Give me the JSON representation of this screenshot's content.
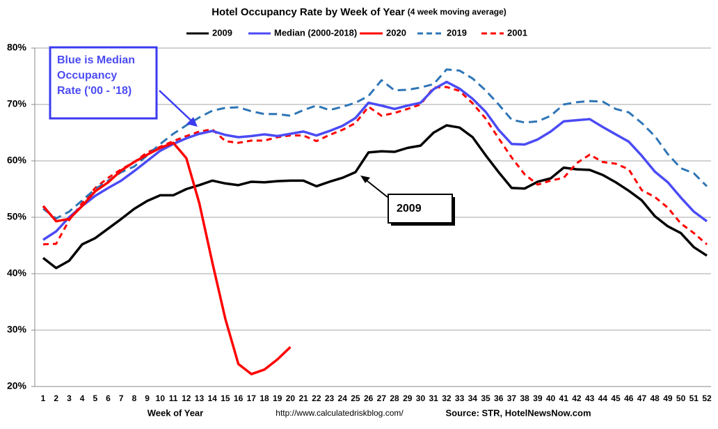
{
  "chart_data": {
    "type": "line",
    "title": "Hotel Occupancy Rate by  Week of Year",
    "subtitle": "(4 week moving average)",
    "xlabel": "Week of Year",
    "url": "http://www.calculatedriskblog.com/",
    "source": "Source: STR, HotelNewsNow.com",
    "x": [
      1,
      2,
      3,
      4,
      5,
      6,
      7,
      8,
      9,
      10,
      11,
      12,
      13,
      14,
      15,
      16,
      17,
      18,
      19,
      20,
      21,
      22,
      23,
      24,
      25,
      26,
      27,
      28,
      29,
      30,
      31,
      32,
      33,
      34,
      35,
      36,
      37,
      38,
      39,
      40,
      41,
      42,
      43,
      44,
      45,
      46,
      47,
      48,
      49,
      50,
      51,
      52
    ],
    "ylim": [
      20,
      80
    ],
    "yticks": [
      {
        "value": 20,
        "label": "20%"
      },
      {
        "value": 30,
        "label": "30%"
      },
      {
        "value": 40,
        "label": "40%"
      },
      {
        "value": 50,
        "label": "50%"
      },
      {
        "value": 60,
        "label": "60%"
      },
      {
        "value": 70,
        "label": "70%"
      },
      {
        "value": 80,
        "label": "80%"
      }
    ],
    "grid": true,
    "series": [
      {
        "name": "2009",
        "color": "#000000",
        "dashed": false,
        "values": [
          42.8,
          41.0,
          42.3,
          45.2,
          46.3,
          48.0,
          49.7,
          51.5,
          52.9,
          53.9,
          53.9,
          55.0,
          55.7,
          56.5,
          56.0,
          55.7,
          56.3,
          56.2,
          56.4,
          56.5,
          56.5,
          55.5,
          56.3,
          57.0,
          58.0,
          61.5,
          61.7,
          61.6,
          62.3,
          62.7,
          65.0,
          66.3,
          65.9,
          64.2,
          61.0,
          58.0,
          55.2,
          55.1,
          56.3,
          56.9,
          58.8,
          58.5,
          58.4,
          57.5,
          56.2,
          54.7,
          53.0,
          50.2,
          48.4,
          47.2,
          44.7,
          43.2
        ]
      },
      {
        "name": "Median (2000-2018)",
        "color": "#4b4bf5",
        "dashed": false,
        "values": [
          46.0,
          47.5,
          50.0,
          52.0,
          53.8,
          55.2,
          56.5,
          58.2,
          60.0,
          61.8,
          63.0,
          64.0,
          64.8,
          65.3,
          64.6,
          64.2,
          64.4,
          64.7,
          64.4,
          64.8,
          65.2,
          64.5,
          65.3,
          66.2,
          67.6,
          70.3,
          69.8,
          69.2,
          69.8,
          70.3,
          72.7,
          74.0,
          72.8,
          71.0,
          68.7,
          65.5,
          63.0,
          62.9,
          63.8,
          65.2,
          67.0,
          67.2,
          67.4,
          66.0,
          64.7,
          63.4,
          60.9,
          58.1,
          56.2,
          53.5,
          51.0,
          49.3
        ]
      },
      {
        "name": "2020",
        "color": "#ff0000",
        "dashed": false,
        "values": [
          52.0,
          49.3,
          49.7,
          52.0,
          54.6,
          56.2,
          58.3,
          59.8,
          61.1,
          62.3,
          63.2,
          60.5,
          52.5,
          42.0,
          32.0,
          24.0,
          22.2,
          23.0,
          24.8,
          27.0,
          null,
          null,
          null,
          null,
          null,
          null,
          null,
          null,
          null,
          null,
          null,
          null,
          null,
          null,
          null,
          null,
          null,
          null,
          null,
          null,
          null,
          null,
          null,
          null,
          null,
          null,
          null,
          null,
          null,
          null,
          null,
          null
        ]
      },
      {
        "name": "2019",
        "color": "#2e75b6",
        "dashed": true,
        "values": [
          51.5,
          49.8,
          51.0,
          53.0,
          55.0,
          56.5,
          58.0,
          59.0,
          61.0,
          63.0,
          64.8,
          66.3,
          67.7,
          68.9,
          69.4,
          69.5,
          68.8,
          68.3,
          68.3,
          68.0,
          69.0,
          69.8,
          69.0,
          69.6,
          70.3,
          71.5,
          74.3,
          72.5,
          72.6,
          73.0,
          73.6,
          76.2,
          76.0,
          74.6,
          72.5,
          70.0,
          67.3,
          66.8,
          67.0,
          68.0,
          70.0,
          70.4,
          70.6,
          70.5,
          69.2,
          68.6,
          66.7,
          64.4,
          61.2,
          58.7,
          57.8,
          55.5
        ]
      },
      {
        "name": "2001",
        "color": "#ff0000",
        "dashed": true,
        "values": [
          45.2,
          45.3,
          49.5,
          52.5,
          55.2,
          57.0,
          58.5,
          59.8,
          61.5,
          62.5,
          63.5,
          64.4,
          65.2,
          65.6,
          63.5,
          63.2,
          63.6,
          63.6,
          64.2,
          64.5,
          64.5,
          63.5,
          64.6,
          65.5,
          66.7,
          69.6,
          68.0,
          68.5,
          69.2,
          70.0,
          73.0,
          73.1,
          72.4,
          70.2,
          67.5,
          64.0,
          60.6,
          57.6,
          55.8,
          56.5,
          57.0,
          59.6,
          61.1,
          59.8,
          59.5,
          58.5,
          54.8,
          53.6,
          51.7,
          48.9,
          47.2,
          45.2
        ]
      }
    ],
    "annotations": [
      {
        "text": [
          "Blue is Median",
          "Occupancy",
          "Rate ('00 - '18)"
        ]
      },
      {
        "text": "2009"
      }
    ]
  }
}
